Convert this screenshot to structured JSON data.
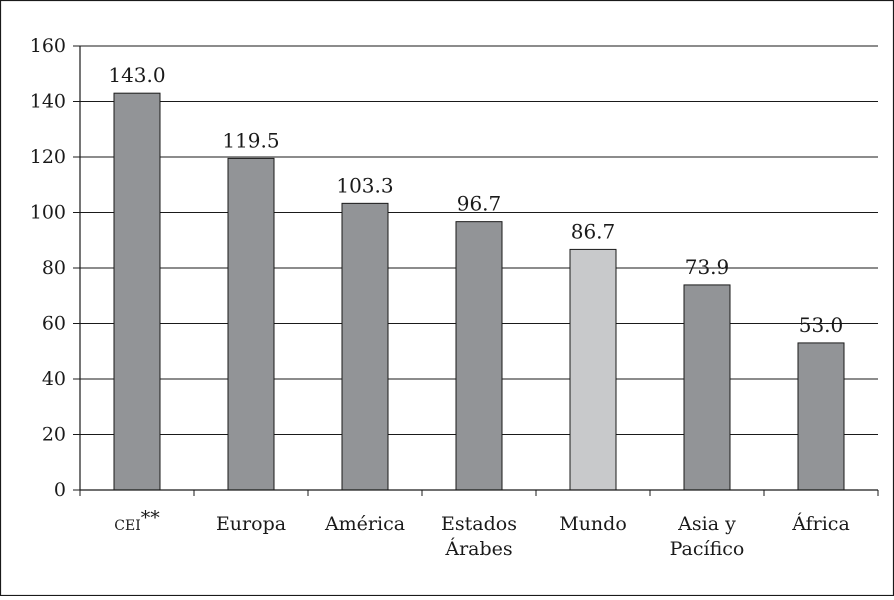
{
  "chart_data": {
    "type": "bar",
    "title": "",
    "xlabel": "",
    "ylabel": "",
    "ylim": [
      0,
      160
    ],
    "yticks": [
      0,
      20,
      40,
      60,
      80,
      100,
      120,
      140,
      160
    ],
    "grid": true,
    "legend": "none",
    "categories": [
      [
        "CEI**"
      ],
      [
        "Europa"
      ],
      [
        "América"
      ],
      [
        "Estados",
        "Árabes"
      ],
      [
        "Mundo"
      ],
      [
        "Asia y",
        "Pacífico"
      ],
      [
        "África"
      ]
    ],
    "values": [
      143.0,
      119.5,
      103.3,
      96.7,
      86.7,
      73.9,
      53.0
    ],
    "data_labels": [
      "143.0",
      "119.5",
      "103.3",
      "96.7",
      "86.7",
      "73.9",
      "53.0"
    ],
    "highlight_index": 4,
    "colors": {
      "bar": "#929497",
      "bar_highlight": "#c8c9cb",
      "bar_stroke": "#1a1a1a",
      "grid": "#1a1a1a",
      "axis": "#1a1a1a",
      "frame": "#1a1a1a"
    }
  }
}
